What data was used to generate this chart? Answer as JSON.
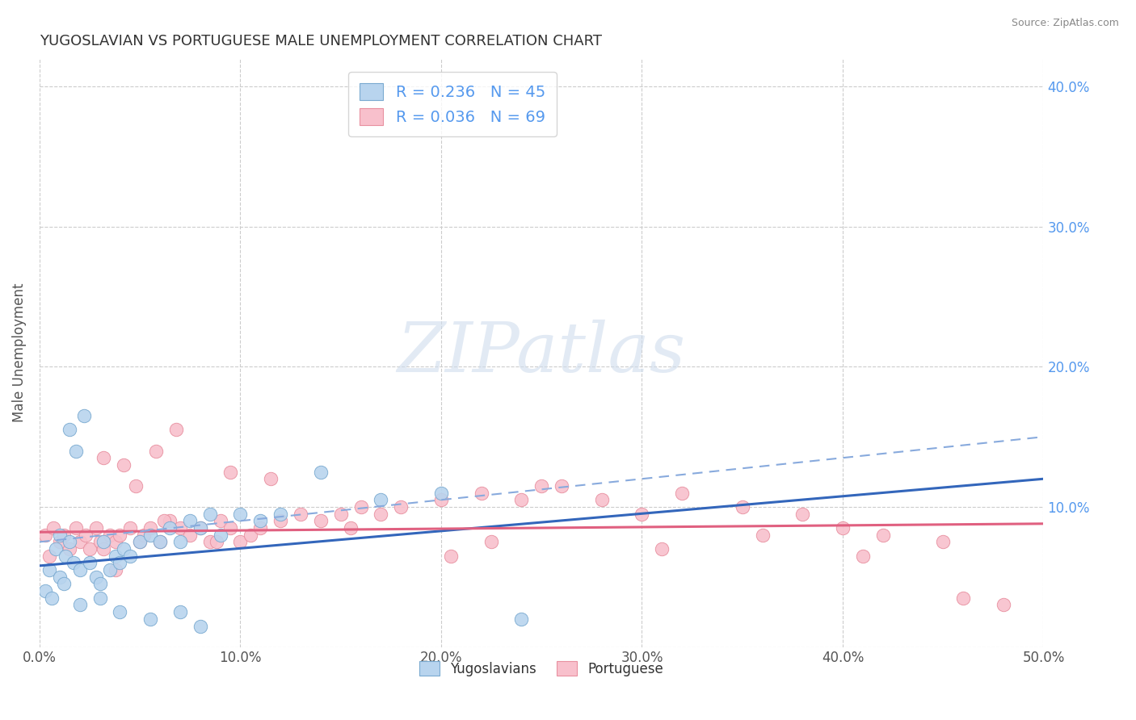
{
  "title": "YUGOSLAVIAN VS PORTUGUESE MALE UNEMPLOYMENT CORRELATION CHART",
  "source": "Source: ZipAtlas.com",
  "xlim": [
    0,
    50
  ],
  "ylim": [
    0,
    42
  ],
  "ylabel": "Male Unemployment",
  "legend_label1": "Yugoslavians",
  "legend_label2": "Portuguese",
  "r1": "0.236",
  "n1": "45",
  "r2": "0.036",
  "n2": "69",
  "color_blue_fill": "#b8d4ee",
  "color_blue_edge": "#7aaad0",
  "color_pink_fill": "#f8c0cc",
  "color_pink_edge": "#e890a0",
  "color_blue_line": "#3366bb",
  "color_pink_line": "#e06080",
  "color_blue_dash": "#88aadd",
  "background": "#ffffff",
  "grid_color": "#cccccc",
  "title_color": "#333333",
  "right_tick_color": "#5599ee",
  "watermark_color": "#d0dded",
  "yugo_x": [
    0.3,
    0.5,
    0.6,
    0.8,
    1.0,
    1.0,
    1.2,
    1.3,
    1.5,
    1.7,
    1.8,
    2.0,
    2.2,
    2.5,
    2.8,
    3.0,
    3.2,
    3.5,
    3.8,
    4.0,
    4.2,
    4.5,
    5.0,
    5.5,
    6.0,
    6.5,
    7.0,
    7.5,
    8.0,
    8.5,
    9.0,
    10.0,
    11.0,
    12.0,
    14.0,
    17.0,
    20.0,
    2.0,
    1.5,
    3.0,
    4.0,
    5.5,
    7.0,
    8.0,
    24.0
  ],
  "yugo_y": [
    4.0,
    5.5,
    3.5,
    7.0,
    5.0,
    8.0,
    4.5,
    6.5,
    7.5,
    6.0,
    14.0,
    5.5,
    16.5,
    6.0,
    5.0,
    4.5,
    7.5,
    5.5,
    6.5,
    6.0,
    7.0,
    6.5,
    7.5,
    8.0,
    7.5,
    8.5,
    7.5,
    9.0,
    8.5,
    9.5,
    8.0,
    9.5,
    9.0,
    9.5,
    12.5,
    10.5,
    11.0,
    3.0,
    15.5,
    3.5,
    2.5,
    2.0,
    2.5,
    1.5,
    2.0
  ],
  "port_x": [
    0.3,
    0.5,
    0.7,
    1.0,
    1.2,
    1.5,
    1.8,
    2.0,
    2.3,
    2.5,
    2.8,
    3.0,
    3.2,
    3.5,
    3.8,
    4.0,
    4.2,
    4.5,
    5.0,
    5.2,
    5.5,
    6.0,
    6.5,
    7.0,
    7.5,
    8.0,
    8.5,
    9.0,
    9.5,
    10.0,
    10.5,
    11.0,
    12.0,
    13.0,
    14.0,
    15.0,
    16.0,
    18.0,
    20.0,
    22.0,
    24.0,
    26.0,
    28.0,
    30.0,
    32.0,
    35.0,
    38.0,
    40.0,
    42.0,
    45.0,
    48.0,
    3.2,
    4.8,
    6.8,
    9.5,
    11.5,
    20.5,
    25.0,
    15.5,
    22.5,
    31.0,
    36.0,
    41.0,
    46.0,
    17.0,
    6.2,
    8.8,
    5.8,
    3.8
  ],
  "port_y": [
    8.0,
    6.5,
    8.5,
    7.5,
    8.0,
    7.0,
    8.5,
    7.5,
    8.0,
    7.0,
    8.5,
    7.5,
    7.0,
    8.0,
    7.5,
    8.0,
    13.0,
    8.5,
    7.5,
    8.0,
    8.5,
    7.5,
    9.0,
    8.5,
    8.0,
    8.5,
    7.5,
    9.0,
    8.5,
    7.5,
    8.0,
    8.5,
    9.0,
    9.5,
    9.0,
    9.5,
    10.0,
    10.0,
    10.5,
    11.0,
    10.5,
    11.5,
    10.5,
    9.5,
    11.0,
    10.0,
    9.5,
    8.5,
    8.0,
    7.5,
    3.0,
    13.5,
    11.5,
    15.5,
    12.5,
    12.0,
    6.5,
    11.5,
    8.5,
    7.5,
    7.0,
    8.0,
    6.5,
    3.5,
    9.5,
    9.0,
    7.5,
    14.0,
    5.5
  ],
  "yugo_trend_x0": 0,
  "yugo_trend_y0": 5.8,
  "yugo_trend_x1": 50,
  "yugo_trend_y1": 12.0,
  "port_trend_x0": 0,
  "port_trend_y0": 8.2,
  "port_trend_x1": 50,
  "port_trend_y1": 8.8,
  "dash_x0": 0,
  "dash_y0": 7.5,
  "dash_x1": 50,
  "dash_y1": 15.0
}
